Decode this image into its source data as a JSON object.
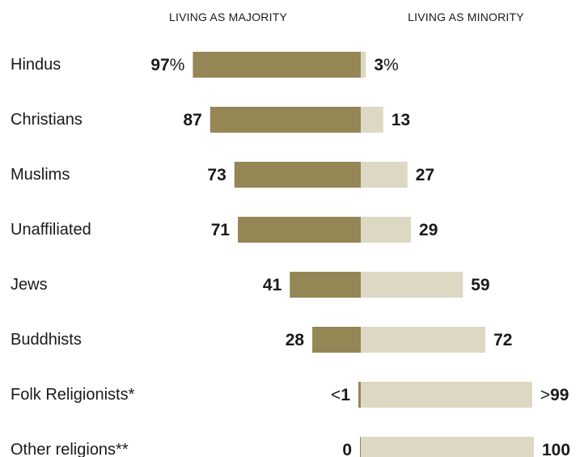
{
  "chart_data": {
    "type": "bar",
    "headers": {
      "majority": "LIVING AS MAJORITY",
      "minority": "LIVING AS MINORITY"
    },
    "categories": [
      "Hindus",
      "Christians",
      "Muslims",
      "Unaffiliated",
      "Jews",
      "Buddhists",
      "Folk Religionists*",
      "Other religions**"
    ],
    "series": [
      {
        "name": "LIVING AS MAJORITY",
        "values": [
          97,
          87,
          73,
          71,
          41,
          28,
          1,
          0
        ]
      },
      {
        "name": "LIVING AS MINORITY",
        "values": [
          3,
          13,
          27,
          29,
          59,
          72,
          99,
          100
        ]
      }
    ],
    "majority_labels": [
      {
        "prefix": "",
        "value": "97",
        "suffix": "%"
      },
      {
        "prefix": "",
        "value": "87",
        "suffix": ""
      },
      {
        "prefix": "",
        "value": "73",
        "suffix": ""
      },
      {
        "prefix": "",
        "value": "71",
        "suffix": ""
      },
      {
        "prefix": "",
        "value": "41",
        "suffix": ""
      },
      {
        "prefix": "",
        "value": "28",
        "suffix": ""
      },
      {
        "prefix": "<",
        "value": "1",
        "suffix": ""
      },
      {
        "prefix": "",
        "value": "0",
        "suffix": ""
      }
    ],
    "minority_labels": [
      {
        "prefix": "",
        "value": "3",
        "suffix": "%"
      },
      {
        "prefix": "",
        "value": "13",
        "suffix": ""
      },
      {
        "prefix": "",
        "value": "27",
        "suffix": ""
      },
      {
        "prefix": "",
        "value": "29",
        "suffix": ""
      },
      {
        "prefix": "",
        "value": "59",
        "suffix": ""
      },
      {
        "prefix": "",
        "value": "72",
        "suffix": ""
      },
      {
        "prefix": ">",
        "value": "99",
        "suffix": ""
      },
      {
        "prefix": "",
        "value": "100",
        "suffix": ""
      }
    ],
    "ylim": [
      0,
      100
    ],
    "colors": {
      "majority": "#958655",
      "minority": "#dcd8c4",
      "text": "#1a1a1a"
    },
    "grid": false,
    "legend": "top"
  }
}
